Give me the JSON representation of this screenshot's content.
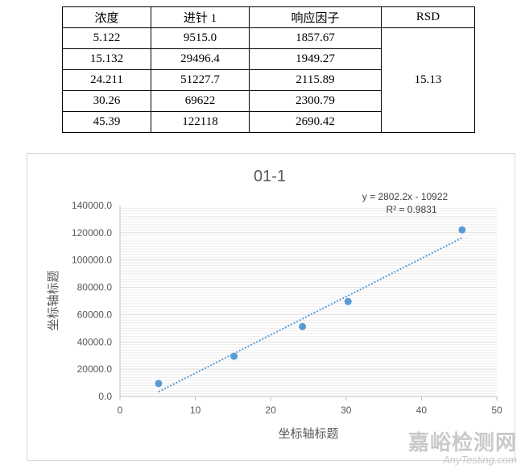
{
  "table": {
    "headers": [
      "浓度",
      "进针 1",
      "响应因子",
      "RSD"
    ],
    "rows": [
      [
        "5.122",
        "9515.0",
        "1857.67"
      ],
      [
        "15.132",
        "29496.4",
        "1949.27"
      ],
      [
        "24.211",
        "51227.7",
        "2115.89"
      ],
      [
        "30.26",
        "69622",
        "2300.79"
      ],
      [
        "45.39",
        "122118",
        "2690.42"
      ]
    ],
    "rsd": "15.13"
  },
  "chart_data": {
    "type": "scatter",
    "title": "01-1",
    "xlabel": "坐标轴标题",
    "ylabel": "坐标轴标题",
    "xlim": [
      0,
      50
    ],
    "ylim": [
      0,
      140000
    ],
    "xticks": [
      0,
      10,
      20,
      30,
      40,
      50
    ],
    "yticks": [
      0,
      20000,
      40000,
      60000,
      80000,
      100000,
      120000,
      140000
    ],
    "ytick_labels": [
      "0.0",
      "20000.0",
      "40000.0",
      "60000.0",
      "80000.0",
      "100000.0",
      "120000.0",
      "140000.0"
    ],
    "points": [
      {
        "x": 5.122,
        "y": 9515.0
      },
      {
        "x": 15.132,
        "y": 29496.4
      },
      {
        "x": 24.211,
        "y": 51227.7
      },
      {
        "x": 30.26,
        "y": 69622
      },
      {
        "x": 45.39,
        "y": 122118
      }
    ],
    "trendline": {
      "slope": 2802.2,
      "intercept": -10922,
      "type": "linear"
    },
    "equation": "y = 2802.2x - 10922",
    "r_squared": "R² = 0.9831",
    "grid": true,
    "marker_color": "#5b9bd5",
    "trend_color": "#5b9bd5"
  },
  "watermark": {
    "cn": "嘉峪检测网",
    "en": "AnyTesting.com"
  }
}
